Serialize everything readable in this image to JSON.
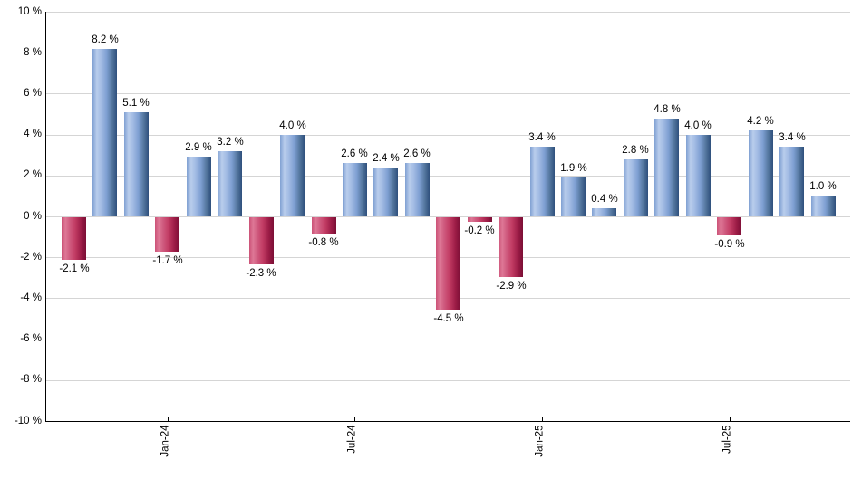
{
  "chart_data": {
    "type": "bar",
    "title": "",
    "xlabel": "",
    "ylabel": "",
    "ylim": [
      -10,
      10
    ],
    "grid": true,
    "legend": false,
    "y_tick_labels": [
      "10 %",
      "8 %",
      "6 %",
      "4 %",
      "2 %",
      "0 %",
      "-2 %",
      "-4 %",
      "-6 %",
      "-8 %",
      "-10 %"
    ],
    "y_tick_values": [
      10,
      8,
      6,
      4,
      2,
      0,
      -2,
      -4,
      -6,
      -8,
      -10
    ],
    "values": [
      -2.1,
      8.2,
      5.1,
      -1.7,
      2.9,
      3.2,
      -2.3,
      4.0,
      -0.8,
      2.6,
      2.4,
      2.6,
      -4.5,
      -0.2,
      -2.9,
      3.4,
      1.9,
      0.4,
      2.8,
      4.8,
      4.0,
      -0.9,
      4.2,
      3.4,
      1.0
    ],
    "bar_labels": [
      "-2.1 %",
      "8.2 %",
      "5.1 %",
      "-1.7 %",
      "2.9 %",
      "3.2 %",
      "-2.3 %",
      "4.0 %",
      "-0.8 %",
      "2.6 %",
      "2.4 %",
      "2.6 %",
      "-4.5 %",
      "-0.2 %",
      "-2.9 %",
      "3.4 %",
      "1.9 %",
      "0.4 %",
      "2.8 %",
      "4.8 %",
      "4.0 %",
      "-0.9 %",
      "4.2 %",
      "3.4 %",
      "1.0 %"
    ],
    "x_ticks": [
      {
        "label": "Jan-24",
        "bar_index": 3
      },
      {
        "label": "Jul-24",
        "bar_index": 9
      },
      {
        "label": "Jan-25",
        "bar_index": 15
      },
      {
        "label": "Jul-25",
        "bar_index": 21
      }
    ],
    "colors": {
      "positive_bar": "#7e9fd2",
      "positive_bar_dark": "#2e4f7c",
      "positive_bar_light": "#b9cdec",
      "negative_bar": "#c23c64",
      "negative_bar_dark": "#7b0e35",
      "negative_bar_light": "#de7896",
      "gridline": "#d5d5d5",
      "axis": "#000000",
      "label_text": "#000000",
      "background": "#ffffff"
    }
  }
}
